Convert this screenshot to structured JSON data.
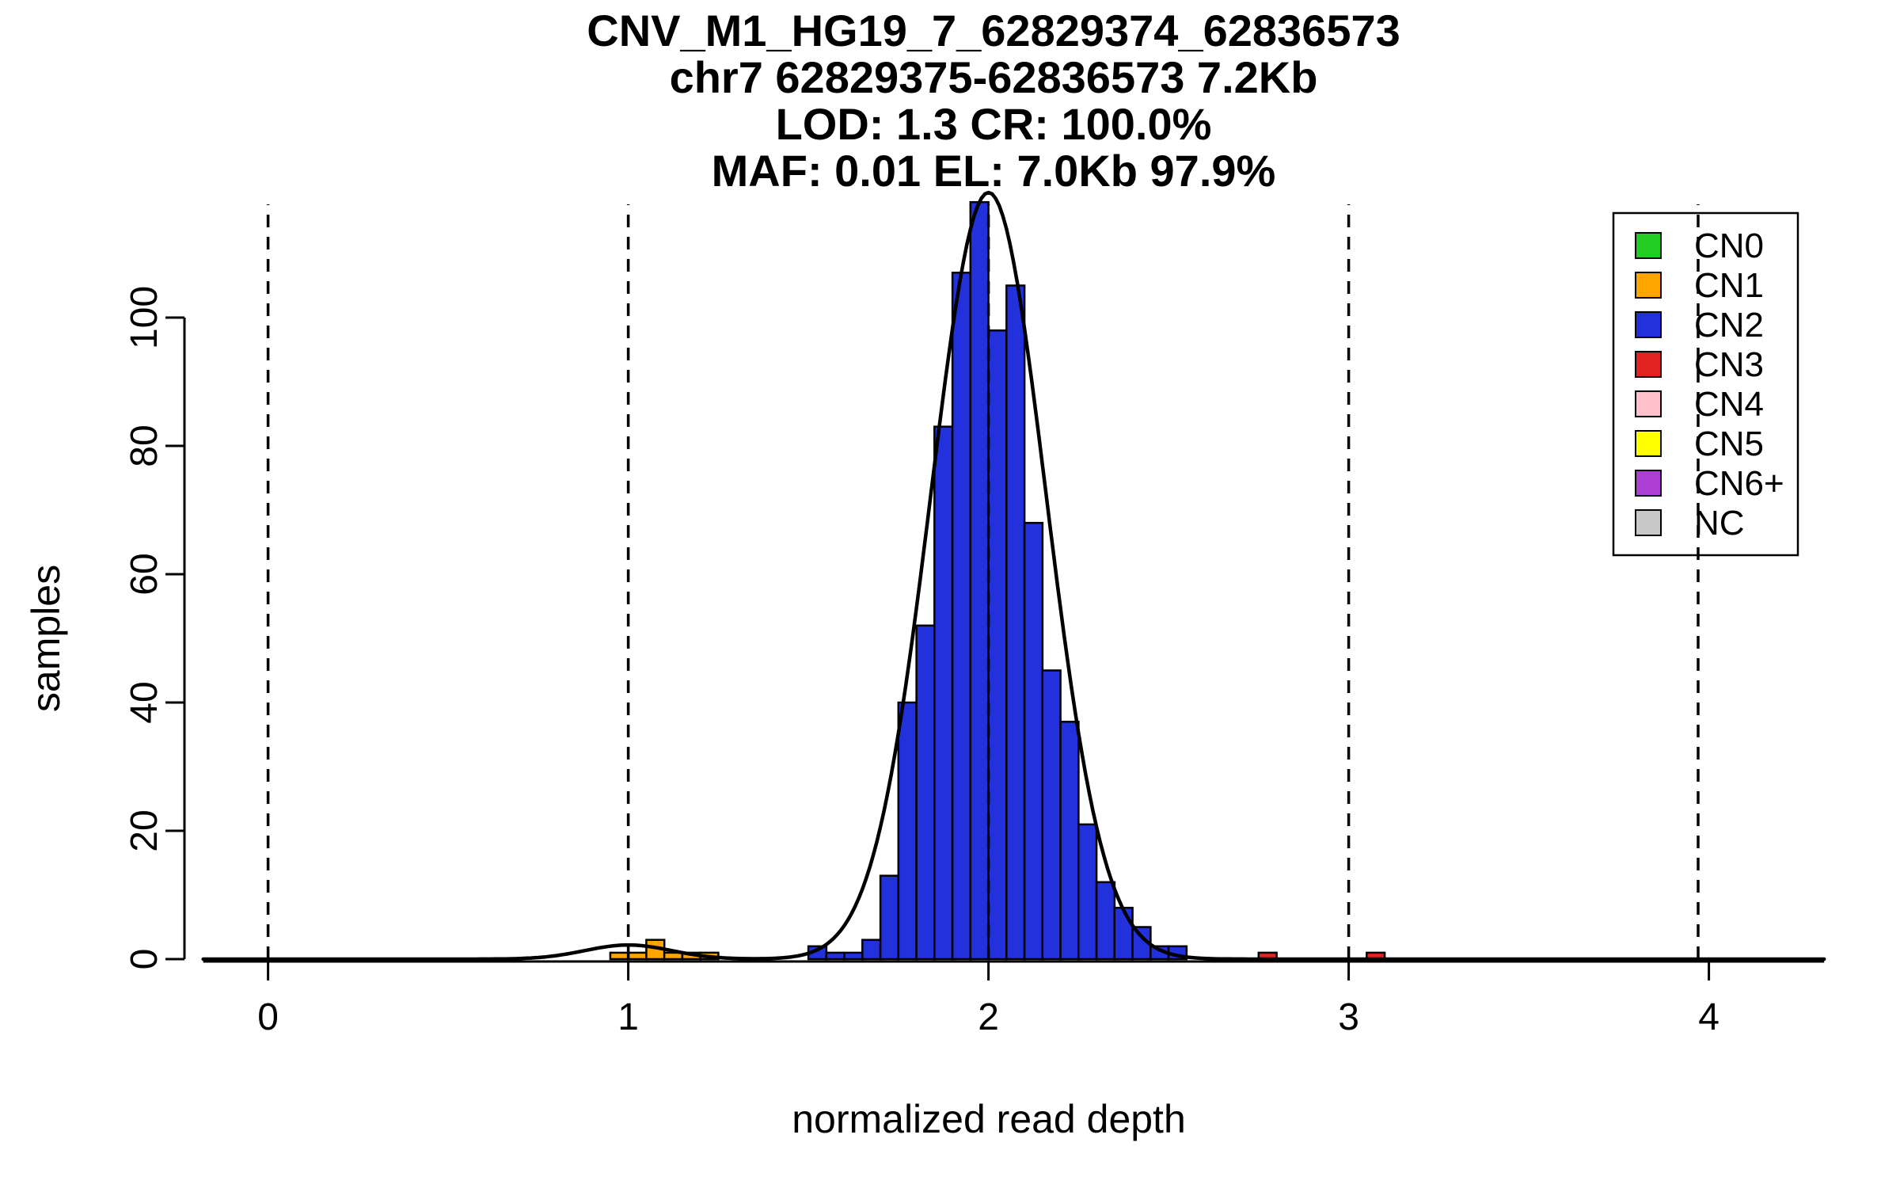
{
  "chart_data": {
    "type": "bar",
    "title_lines": [
      "CNV_M1_HG19_7_62829374_62836573",
      "chr7 62829375-62836573 7.2Kb",
      "LOD: 1.3 CR: 100.0%",
      "MAF: 0.01 EL: 7.0Kb 97.9%"
    ],
    "xlabel": "normalized read depth",
    "ylabel": "samples",
    "xlim": [
      -0.18,
      4.32
    ],
    "ylim": [
      0,
      119
    ],
    "x_ticks": [
      0,
      1,
      2,
      3,
      4
    ],
    "y_ticks": [
      0,
      20,
      40,
      60,
      80,
      100
    ],
    "dashed_guides_x": [
      0,
      1,
      2,
      3,
      3.97
    ],
    "bin_width": 0.05,
    "bars": [
      {
        "x": 0.95,
        "count": 1,
        "cn": "CN1"
      },
      {
        "x": 1.0,
        "count": 1,
        "cn": "CN1"
      },
      {
        "x": 1.05,
        "count": 3,
        "cn": "CN1"
      },
      {
        "x": 1.1,
        "count": 1,
        "cn": "CN1"
      },
      {
        "x": 1.15,
        "count": 1,
        "cn": "CN1"
      },
      {
        "x": 1.2,
        "count": 1,
        "cn": "CN1"
      },
      {
        "x": 1.5,
        "count": 2,
        "cn": "CN2"
      },
      {
        "x": 1.55,
        "count": 1,
        "cn": "CN2"
      },
      {
        "x": 1.6,
        "count": 1,
        "cn": "CN2"
      },
      {
        "x": 1.65,
        "count": 3,
        "cn": "CN2"
      },
      {
        "x": 1.7,
        "count": 13,
        "cn": "CN2"
      },
      {
        "x": 1.75,
        "count": 40,
        "cn": "CN2"
      },
      {
        "x": 1.8,
        "count": 52,
        "cn": "CN2"
      },
      {
        "x": 1.85,
        "count": 83,
        "cn": "CN2"
      },
      {
        "x": 1.9,
        "count": 107,
        "cn": "CN2"
      },
      {
        "x": 1.95,
        "count": 118,
        "cn": "CN2"
      },
      {
        "x": 2.0,
        "count": 98,
        "cn": "CN2"
      },
      {
        "x": 2.05,
        "count": 105,
        "cn": "CN2"
      },
      {
        "x": 2.1,
        "count": 68,
        "cn": "CN2"
      },
      {
        "x": 2.15,
        "count": 45,
        "cn": "CN2"
      },
      {
        "x": 2.2,
        "count": 37,
        "cn": "CN2"
      },
      {
        "x": 2.25,
        "count": 21,
        "cn": "CN2"
      },
      {
        "x": 2.3,
        "count": 12,
        "cn": "CN2"
      },
      {
        "x": 2.35,
        "count": 8,
        "cn": "CN2"
      },
      {
        "x": 2.4,
        "count": 5,
        "cn": "CN2"
      },
      {
        "x": 2.45,
        "count": 2,
        "cn": "CN2"
      },
      {
        "x": 2.5,
        "count": 2,
        "cn": "CN2"
      },
      {
        "x": 2.75,
        "count": 1,
        "cn": "CN3"
      },
      {
        "x": 3.05,
        "count": 1,
        "cn": "CN3"
      }
    ],
    "density_curve": {
      "components": [
        {
          "mean": 1.0,
          "sd": 0.12,
          "peak": 2.2
        },
        {
          "mean": 2.0,
          "sd": 0.16,
          "peak": 119.5
        }
      ]
    },
    "legend": {
      "position": "top-right",
      "entries": [
        {
          "label": "CN0",
          "color": "#22CC22"
        },
        {
          "label": "CN1",
          "color": "#FFA500"
        },
        {
          "label": "CN2",
          "color": "#2231DC"
        },
        {
          "label": "CN3",
          "color": "#E32222"
        },
        {
          "label": "CN4",
          "color": "#FFC0CB"
        },
        {
          "label": "CN5",
          "color": "#FFFF00"
        },
        {
          "label": "CN6+",
          "color": "#AE3FD4"
        },
        {
          "label": "NC",
          "color": "#C8C8C8"
        }
      ]
    }
  }
}
